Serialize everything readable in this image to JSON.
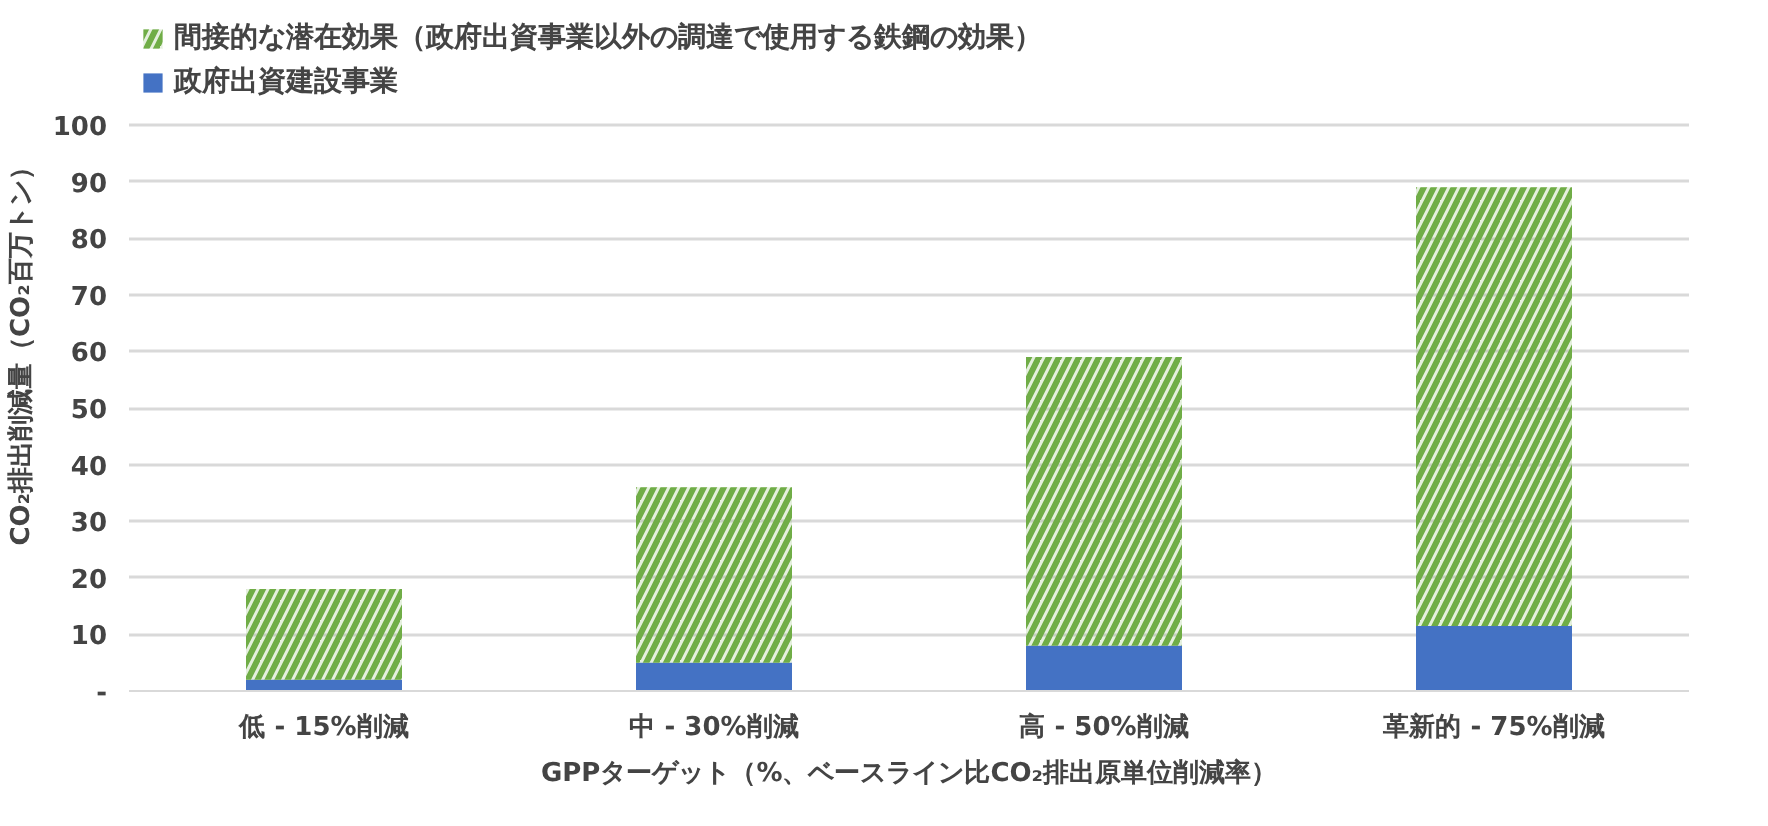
{
  "chart_data": {
    "type": "bar",
    "stacked": true,
    "ylabel": "CO₂排出削減量（CO₂百万トン）",
    "xlabel": "GPPターゲット（%、ベースライン比CO₂排出原単位削減率）",
    "categories": [
      "低 - 15%削減",
      "中 - 30%削減",
      "高 - 50%削減",
      "革新的 - 75%削減"
    ],
    "series": [
      {
        "name": "政府出資建設事業",
        "color": "#4472c4",
        "values": [
          2,
          5,
          8,
          11.5
        ]
      },
      {
        "name": "間接的な潜在効果（政府出資事業以外の調達で使用する鉄鋼の効果）",
        "color": "#70ad47",
        "values": [
          16,
          31,
          51,
          77.5
        ]
      }
    ],
    "ylim": [
      0,
      100
    ],
    "yticks": [
      {
        "value": 0,
        "label": "-"
      },
      10,
      20,
      30,
      40,
      50,
      60,
      70,
      80,
      90,
      100
    ],
    "grid": "y",
    "legend": "top left"
  }
}
